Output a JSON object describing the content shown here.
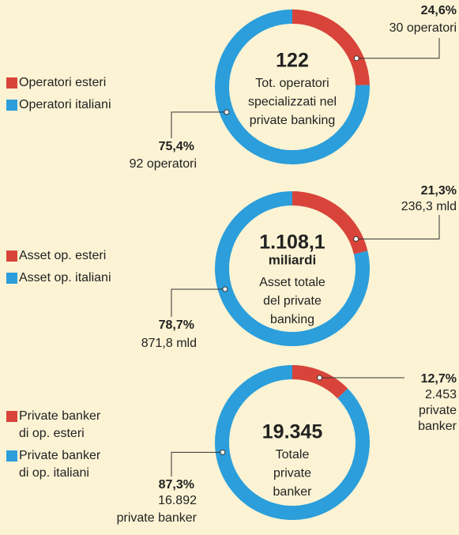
{
  "chart_data": [
    {
      "type": "pie",
      "categories": [
        "Operatori esteri",
        "Operatori italiani"
      ],
      "values": [
        24.6,
        75.4
      ],
      "value_labels": [
        "24,6%",
        "75,4%"
      ],
      "details": [
        [
          "30 operatori"
        ],
        [
          "92 operatori"
        ]
      ],
      "colors": [
        "#d8443a",
        "#2b9edb"
      ],
      "center_title": [
        "122"
      ],
      "center_text": [
        "Tot. operatori",
        "specializzati nel",
        "private banking"
      ]
    },
    {
      "type": "pie",
      "categories": [
        "Asset op. esteri",
        "Asset op. italiani"
      ],
      "values": [
        21.3,
        78.7
      ],
      "value_labels": [
        "21,3%",
        "78,7%"
      ],
      "details": [
        [
          "236,3 mld"
        ],
        [
          "871,8 mld"
        ]
      ],
      "colors": [
        "#d8443a",
        "#2b9edb"
      ],
      "center_title": [
        "1.108,1",
        "miliardi"
      ],
      "center_text": [
        "Asset totale",
        "del private",
        "banking"
      ]
    },
    {
      "type": "pie",
      "categories": [
        "Private banker\ndi op. esteri",
        "Private banker\ndi op. italiani"
      ],
      "values": [
        12.7,
        87.3
      ],
      "value_labels": [
        "12,7%",
        "87,3%"
      ],
      "details": [
        [
          "2.453",
          "private",
          "banker"
        ],
        [
          "16.892",
          "private banker"
        ]
      ],
      "colors": [
        "#d8443a",
        "#2b9edb"
      ],
      "center_title": [
        "19.345"
      ],
      "center_text": [
        "Totale",
        "private",
        "banker"
      ]
    }
  ]
}
